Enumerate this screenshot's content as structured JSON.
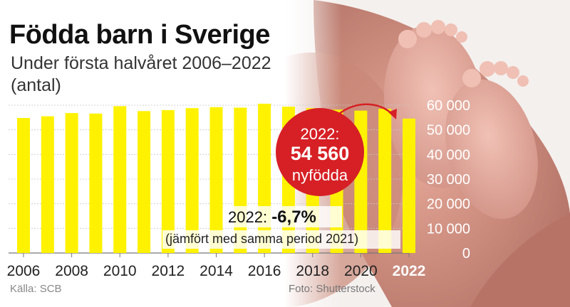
{
  "header": {
    "title": "Födda barn i Sverige",
    "subtitle": "Under första halvåret 2006–2022 (antal)"
  },
  "callout": {
    "year_label": "2022:",
    "value_label": "54 560",
    "unit_label": "nyfödda"
  },
  "change_note": {
    "prefix": "2022:",
    "change": "-6,7%",
    "comparison": "(jämfört med samma period 2021)"
  },
  "footer": {
    "source": "Källa: SCB",
    "photo_credit": "Foto: Shutterstock"
  },
  "colors": {
    "bar": "#fff200",
    "badge": "#d62025",
    "grid": "#c9c9c9"
  },
  "chart_data": {
    "type": "bar",
    "categories": [
      "2006",
      "2007",
      "2008",
      "2009",
      "2010",
      "2011",
      "2012",
      "2013",
      "2014",
      "2015",
      "2016",
      "2017",
      "2018",
      "2019",
      "2020",
      "2021",
      "2022"
    ],
    "values": [
      54800,
      55500,
      56800,
      56600,
      59600,
      57600,
      58000,
      58800,
      59200,
      59000,
      60600,
      59400,
      58800,
      58200,
      57800,
      58500,
      54560
    ],
    "x_tick_labels": [
      "2006",
      "2008",
      "2010",
      "2012",
      "2014",
      "2016",
      "2018",
      "2020",
      "2022"
    ],
    "y_ticks": [
      0,
      10000,
      20000,
      30000,
      40000,
      50000,
      60000
    ],
    "y_tick_labels": [
      "0",
      "10 000",
      "20 000",
      "30 000",
      "40 000",
      "50 000",
      "60 000"
    ],
    "ylim": [
      0,
      60000
    ],
    "highlight_category": "2022",
    "grid": true,
    "xlabel": "",
    "ylabel": ""
  }
}
